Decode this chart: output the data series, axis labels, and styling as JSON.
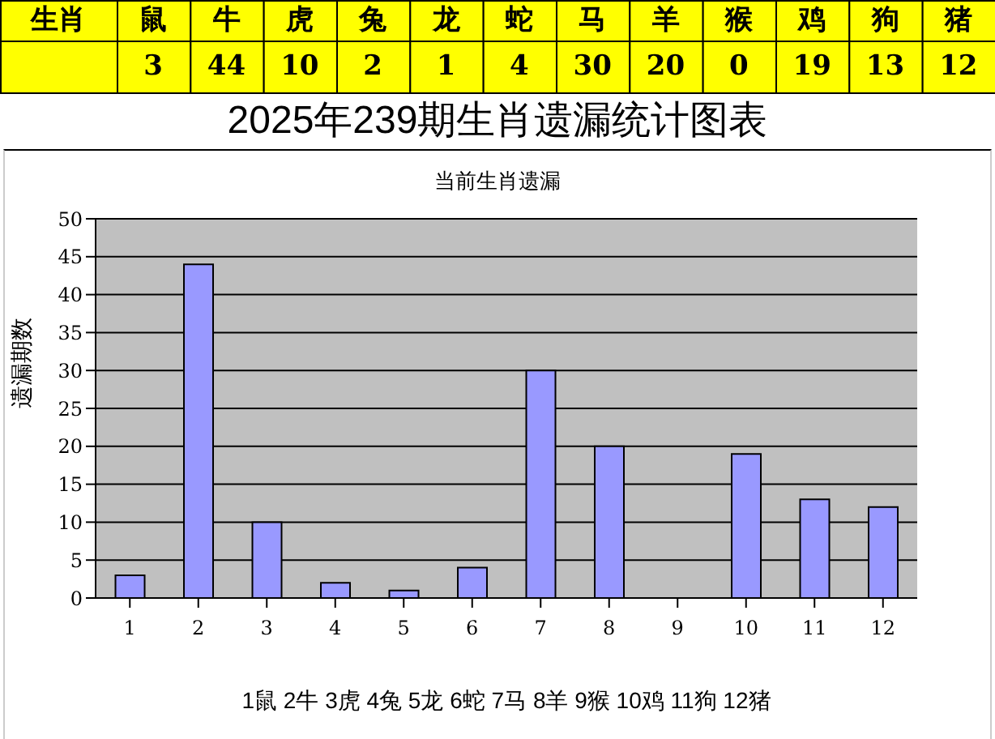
{
  "chart_data": [
    {
      "type": "other",
      "xlabel": "生肖",
      "categories": [
        "鼠",
        "牛",
        "虎",
        "兔",
        "龙",
        "蛇",
        "马",
        "羊",
        "猴",
        "鸡",
        "狗",
        "猪"
      ],
      "values": [
        3,
        44,
        10,
        2,
        1,
        4,
        30,
        20,
        0,
        19,
        13,
        12
      ],
      "color": "#ffff00",
      "data_labels": true
    },
    {
      "type": "bar",
      "title": "2025年239期生肖遗漏统计图表",
      "subtitle": "当前生肖遗漏",
      "ylabel": "遗漏期数",
      "xlabel": "1鼠  2牛  3虎  4兔  5龙  6蛇  7马  8羊  9猴  10鸡  11狗  12猪",
      "categories": [
        "1",
        "2",
        "3",
        "4",
        "5",
        "6",
        "7",
        "8",
        "9",
        "10",
        "11",
        "12"
      ],
      "values": [
        3,
        44,
        10,
        2,
        1,
        4,
        30,
        20,
        0,
        19,
        13,
        12
      ],
      "color": "#9999ff",
      "ylim": [
        0,
        50
      ],
      "yticks": [
        0,
        5,
        10,
        15,
        20,
        25,
        30,
        35,
        40,
        45,
        50
      ],
      "grid": "y"
    }
  ]
}
